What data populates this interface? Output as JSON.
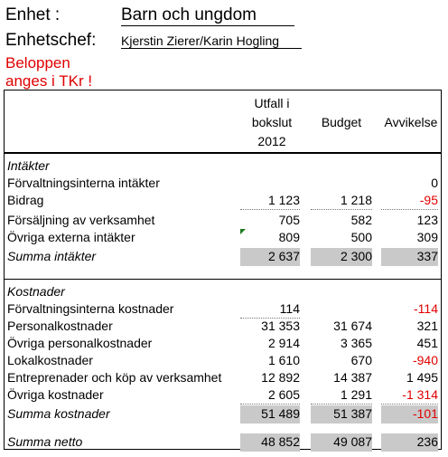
{
  "header": {
    "unit_label": "Enhet :",
    "unit_value": "Barn och ungdom",
    "manager_label": "Enhetschef:",
    "manager_value": "Kjerstin Zierer/Karin Hogling",
    "note_line1": "Beloppen",
    "note_line2": "anges i TKr !"
  },
  "colors": {
    "negative": "#e00000",
    "sum_fill": "#c9c9c9"
  },
  "columns": {
    "outcome_line1": "Utfall  i",
    "outcome_line2": "bokslut",
    "outcome_line3": "2012",
    "budget": "Budget",
    "variance": "Avvikelse"
  },
  "income": {
    "title": "Intäkter",
    "rows": [
      {
        "label": "Förvaltningsinterna intäkter",
        "outcome": "",
        "budget": "",
        "variance": "0"
      },
      {
        "label": "Bidrag",
        "outcome": "1 123",
        "budget": "1 218",
        "variance": "-95"
      },
      {
        "label": "Försäljning av verksamhet",
        "outcome": "705",
        "budget": "582",
        "variance": "123"
      },
      {
        "label": "Övriga externa intäkter",
        "outcome": "809",
        "budget": "500",
        "variance": "309"
      }
    ],
    "sum": {
      "label": "Summa  intäkter",
      "outcome": "2 637",
      "budget": "2 300",
      "variance": "337"
    }
  },
  "costs": {
    "title": "Kostnader",
    "rows": [
      {
        "label": "Förvaltningsinterna kostnader",
        "outcome": "114",
        "budget": "",
        "variance": "-114"
      },
      {
        "label": "Personalkostnader",
        "outcome": "31 353",
        "budget": "31 674",
        "variance": "321"
      },
      {
        "label": "Övriga personalkostnader",
        "outcome": "2 914",
        "budget": "3 365",
        "variance": "451"
      },
      {
        "label": "Lokalkostnader",
        "outcome": "1 610",
        "budget": "670",
        "variance": "-940"
      },
      {
        "label": "Entreprenader och köp av verksamhet",
        "outcome": "12 892",
        "budget": "14 387",
        "variance": "1 495"
      },
      {
        "label": "Övriga kostnader",
        "outcome": "2 605",
        "budget": "1 291",
        "variance": "-1 314"
      }
    ],
    "sum": {
      "label": "Summa kostnader",
      "outcome": "51 489",
      "budget": "51 387",
      "variance": "-101"
    }
  },
  "net": {
    "label": "Summa netto",
    "outcome": "48 852",
    "budget": "49 087",
    "variance": "236"
  }
}
